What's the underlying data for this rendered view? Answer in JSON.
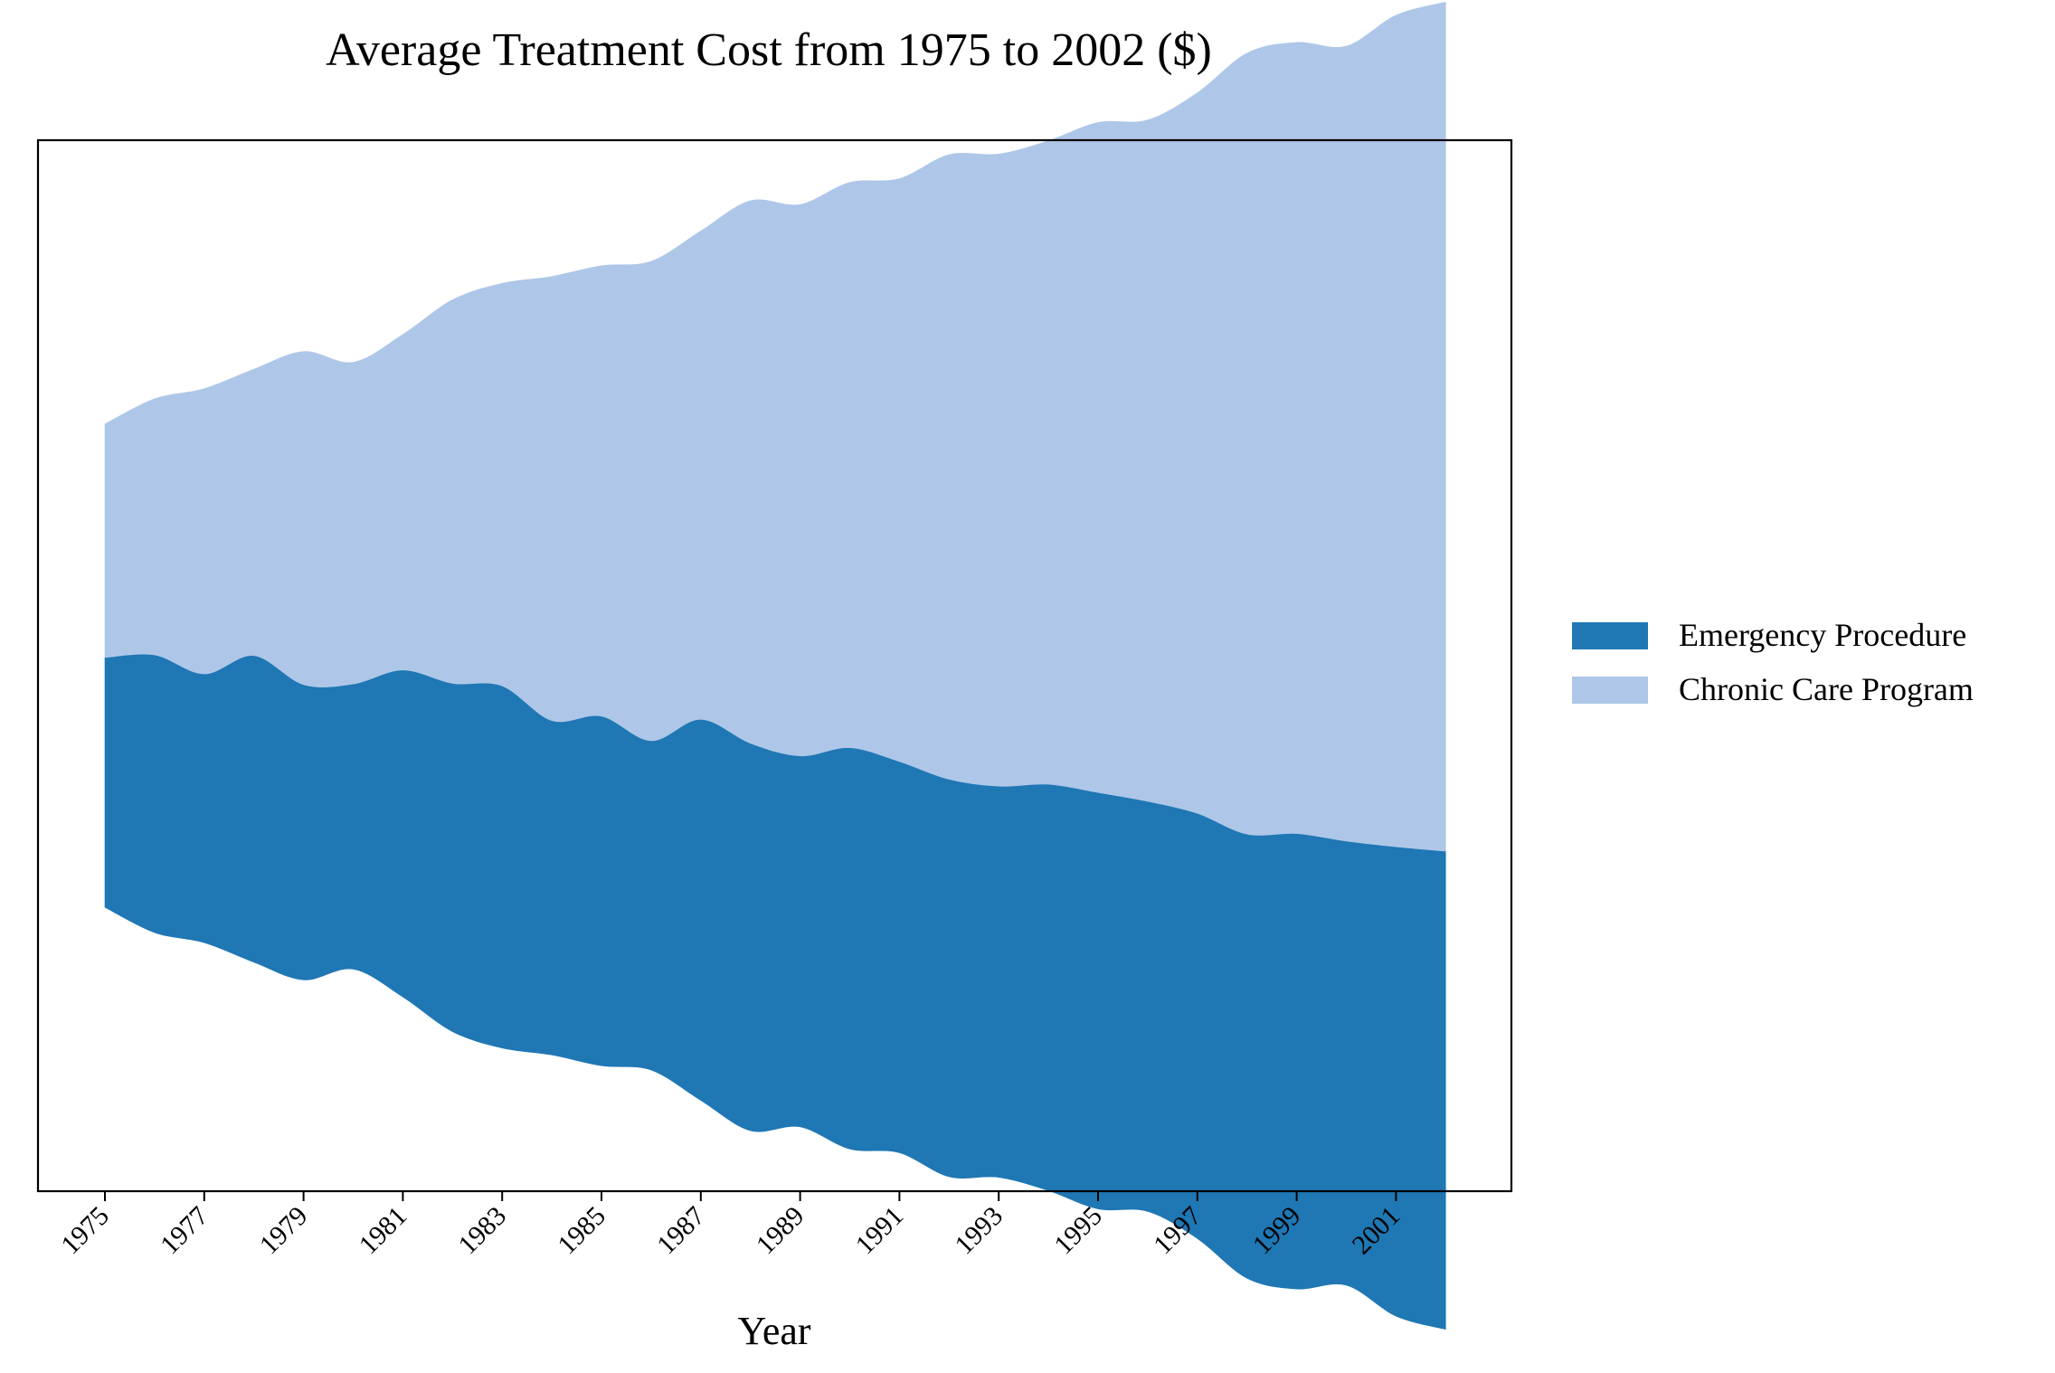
{
  "chart_data": {
    "type": "area",
    "subtype": "streamgraph",
    "title": "Average Treatment Cost from 1975 to 2002 ($)",
    "xlabel": "Year",
    "ylabel": "",
    "x": [
      1975,
      1976,
      1977,
      1978,
      1979,
      1980,
      1981,
      1982,
      1983,
      1984,
      1985,
      1986,
      1987,
      1988,
      1989,
      1990,
      1991,
      1992,
      1993,
      1994,
      1995,
      1996,
      1997,
      1998,
      1999,
      2000,
      2001,
      2002
    ],
    "xticks": [
      "1975",
      "1977",
      "1979",
      "1981",
      "1983",
      "1985",
      "1987",
      "1989",
      "1991",
      "1993",
      "1995",
      "1997",
      "1999",
      "2001"
    ],
    "y_axis_visible": false,
    "grid": false,
    "legend_position": "right",
    "series": [
      {
        "name": "Emergency Procedure",
        "color": "#1f77b4",
        "values": [
          1980,
          2200,
          2130,
          2430,
          2340,
          2260,
          2590,
          2760,
          2870,
          2650,
          2770,
          2610,
          3020,
          3070,
          2940,
          3180,
          3100,
          3150,
          3100,
          3220,
          3300,
          3250,
          3370,
          3520,
          3610,
          3520,
          3720,
          3790
        ]
      },
      {
        "name": "Chronic Care Program",
        "color": "#aec7e8",
        "values": [
          1850,
          2030,
          2260,
          2270,
          2640,
          2550,
          2660,
          3040,
          3190,
          3520,
          3570,
          3800,
          3870,
          4300,
          4370,
          4480,
          4620,
          4950,
          5010,
          5100,
          5310,
          5400,
          5710,
          6190,
          6270,
          6300,
          6590,
          6730
        ]
      }
    ]
  }
}
